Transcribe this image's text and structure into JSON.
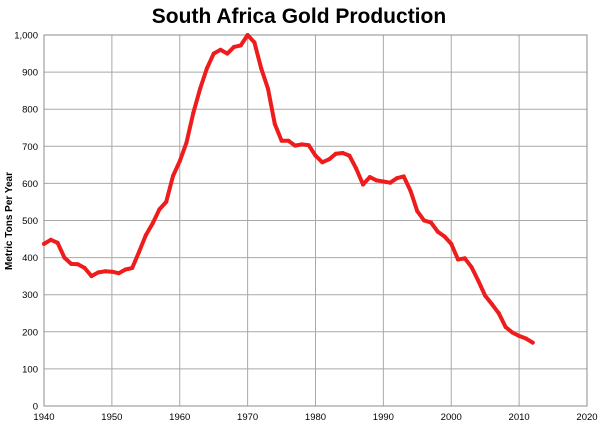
{
  "chart_data": {
    "type": "line",
    "title": "South Africa Gold Production",
    "xlabel": "",
    "ylabel": "Metric Tons Per Year",
    "xlim": [
      1940,
      2020
    ],
    "ylim": [
      0,
      1000
    ],
    "x_ticks": [
      "1940",
      "1950",
      "1960",
      "1970",
      "1980",
      "1990",
      "2000",
      "2010",
      "2020"
    ],
    "y_ticks": [
      "0",
      "100",
      "200",
      "300",
      "400",
      "500",
      "600",
      "700",
      "800",
      "900",
      "1,000"
    ],
    "grid": true,
    "series_color": "#ee1c1c",
    "series": [
      {
        "name": "South Africa Gold Production",
        "x": [
          1940,
          1941,
          1942,
          1943,
          1944,
          1945,
          1946,
          1947,
          1948,
          1949,
          1950,
          1951,
          1952,
          1953,
          1954,
          1955,
          1956,
          1957,
          1958,
          1959,
          1960,
          1961,
          1962,
          1963,
          1964,
          1965,
          1966,
          1967,
          1968,
          1969,
          1970,
          1971,
          1972,
          1973,
          1974,
          1975,
          1976,
          1977,
          1978,
          1979,
          1980,
          1981,
          1982,
          1983,
          1984,
          1985,
          1986,
          1987,
          1988,
          1989,
          1990,
          1991,
          1992,
          1993,
          1994,
          1995,
          1996,
          1997,
          1998,
          1999,
          2000,
          2001,
          2002,
          2003,
          2004,
          2005,
          2006,
          2007,
          2008,
          2009,
          2010,
          2011,
          2012
        ],
        "values": [
          437,
          448,
          440,
          400,
          383,
          382,
          372,
          350,
          360,
          363,
          362,
          358,
          368,
          372,
          415,
          460,
          492,
          530,
          550,
          620,
          660,
          710,
          790,
          855,
          910,
          950,
          960,
          950,
          968,
          972,
          1000,
          980,
          910,
          855,
          760,
          715,
          715,
          702,
          705,
          703,
          675,
          657,
          665,
          680,
          682,
          675,
          640,
          597,
          617,
          608,
          605,
          602,
          614,
          619,
          580,
          525,
          500,
          495,
          470,
          457,
          437,
          395,
          398,
          374,
          337,
          297,
          274,
          250,
          213,
          198,
          189,
          182,
          171
        ]
      }
    ]
  }
}
